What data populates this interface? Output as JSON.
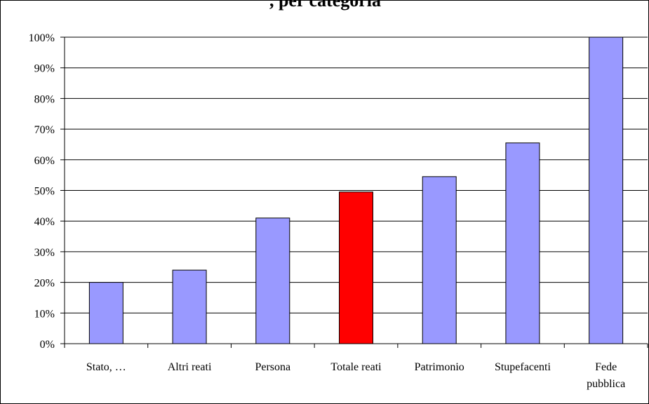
{
  "chart_data": {
    "type": "bar",
    "title": ", per categoria",
    "categories": [
      "Stato, …",
      "Altri reati",
      "Persona",
      "Totale reati",
      "Patrimonio",
      "Stupefacenti",
      "Fede pubblica"
    ],
    "category_lines": [
      [
        "Stato, …"
      ],
      [
        "Altri reati"
      ],
      [
        "Persona"
      ],
      [
        "Totale reati"
      ],
      [
        "Patrimonio"
      ],
      [
        "Stupefacenti"
      ],
      [
        "Fede",
        "pubblica"
      ]
    ],
    "values": [
      20,
      24,
      41,
      49.5,
      54.5,
      65.5,
      100
    ],
    "value_unit": "%",
    "ylim": [
      0,
      100
    ],
    "yticks": [
      0,
      10,
      20,
      30,
      40,
      50,
      60,
      70,
      80,
      90,
      100
    ],
    "ytick_labels": [
      "0%",
      "10%",
      "20%",
      "30%",
      "40%",
      "50%",
      "60%",
      "70%",
      "80%",
      "90%",
      "100%"
    ],
    "xlabel": "",
    "ylabel": "",
    "grid": true,
    "legend": "none",
    "colors": {
      "bar": "#9999ff",
      "highlight": "#ff0000",
      "highlight_category": "Totale reati",
      "axis": "#000000"
    }
  }
}
